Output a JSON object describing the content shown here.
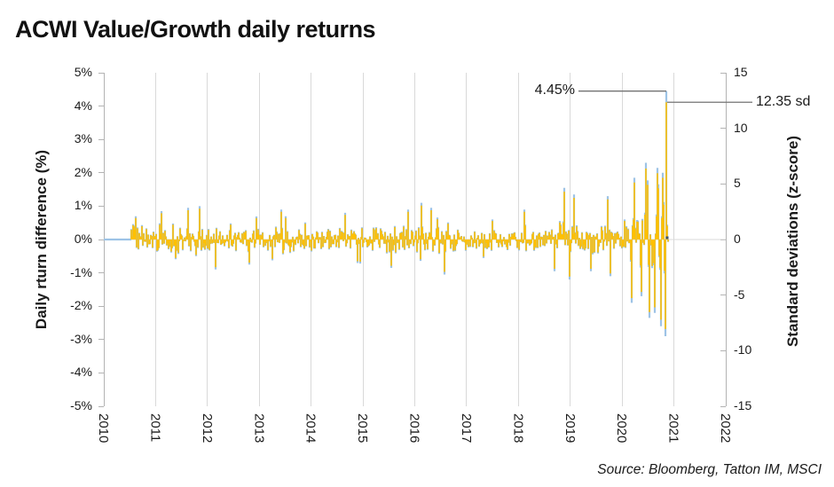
{
  "title": "ACWI Value/Growth daily returns",
  "source_note": "Source: Bloomberg, Tatton IM, MSCI",
  "annotations": {
    "peak_return": "4.45%",
    "peak_zscore": "12.35 sd"
  },
  "left_axis": {
    "title": "Daily rturn difference (%)",
    "tick_labels": [
      "5%",
      "4%",
      "3%",
      "2%",
      "1%",
      "0%",
      "-1%",
      "-2%",
      "-3%",
      "-4%",
      "-5%"
    ],
    "min": -5,
    "max": 5
  },
  "right_axis": {
    "title": "Standard deviations (z-score)",
    "tick_labels": [
      "15",
      "10",
      "5",
      "0",
      "-5",
      "-10",
      "-15"
    ],
    "min": -15,
    "max": 15
  },
  "x_axis": {
    "tick_labels": [
      "2010",
      "2011",
      "2012",
      "2013",
      "2014",
      "2015",
      "2016",
      "2017",
      "2018",
      "2019",
      "2020",
      "2021",
      "2022"
    ],
    "min": 2010,
    "max": 2022
  },
  "palette": {
    "return_series": "#9DC3E6",
    "zscore_series": "#FFC000",
    "gridline": "#d9d9d9",
    "axis_line": "#b3b3b3",
    "callout_line": "#737373",
    "end_marker": "#44546A",
    "text": "#1a1a1a"
  },
  "chart_data": {
    "type": "bar",
    "title": "ACWI Value/Growth daily returns",
    "xlabel": "",
    "ylabel_left": "Daily rturn difference (%)",
    "ylabel_right": "Standard deviations (z-score)",
    "ylim_left": [
      -5,
      5
    ],
    "ylim_right": [
      -15,
      15
    ],
    "xlim": [
      2010,
      2022
    ],
    "grid": "vertical-yearly",
    "legend": "none",
    "series": [
      {
        "name": "Daily return difference (%)",
        "axis": "left",
        "unit": "%"
      },
      {
        "name": "Standard deviations (z-score)",
        "axis": "right",
        "unit": "sd",
        "sd_per_pct": 2.7753
      }
    ],
    "x_start": 2010.53,
    "x_end": 2020.88,
    "flat_zero_segment": {
      "from": 2010.0,
      "to": 2010.53,
      "value": 0
    },
    "peak": {
      "x": 2020.86,
      "pct": 4.45,
      "sd": 12.35
    },
    "trough": {
      "x": 2020.83,
      "pct": -2.9
    },
    "end_marker": {
      "x": 2020.87,
      "pct": 0
    },
    "volatility_envelope_pct": [
      [
        2010.53,
        0.55
      ],
      [
        2010.75,
        0.38
      ],
      [
        2011.1,
        0.42
      ],
      [
        2011.55,
        0.5
      ],
      [
        2011.95,
        0.48
      ],
      [
        2012.4,
        0.4
      ],
      [
        2013.0,
        0.36
      ],
      [
        2013.6,
        0.42
      ],
      [
        2014.3,
        0.35
      ],
      [
        2015.0,
        0.38
      ],
      [
        2015.9,
        0.46
      ],
      [
        2016.25,
        0.5
      ],
      [
        2016.8,
        0.38
      ],
      [
        2017.3,
        0.3
      ],
      [
        2017.9,
        0.34
      ],
      [
        2018.4,
        0.44
      ],
      [
        2018.95,
        0.55
      ],
      [
        2019.4,
        0.5
      ],
      [
        2019.85,
        0.58
      ],
      [
        2020.15,
        0.65
      ],
      [
        2020.35,
        0.95
      ],
      [
        2020.6,
        1.05
      ],
      [
        2020.8,
        1.2
      ],
      [
        2020.89,
        1.25
      ]
    ],
    "spikes_pct": [
      [
        2010.62,
        0.7
      ],
      [
        2011.12,
        0.85
      ],
      [
        2011.62,
        0.95
      ],
      [
        2011.85,
        1.0
      ],
      [
        2012.15,
        -0.9
      ],
      [
        2012.8,
        -0.75
      ],
      [
        2013.42,
        0.9
      ],
      [
        2014.65,
        0.8
      ],
      [
        2015.55,
        -0.85
      ],
      [
        2015.88,
        0.9
      ],
      [
        2016.12,
        1.1
      ],
      [
        2016.32,
        0.95
      ],
      [
        2016.58,
        -1.05
      ],
      [
        2017.5,
        0.6
      ],
      [
        2018.12,
        0.9
      ],
      [
        2018.7,
        -0.95
      ],
      [
        2018.88,
        1.55
      ],
      [
        2018.98,
        -1.2
      ],
      [
        2019.07,
        1.35
      ],
      [
        2019.4,
        -0.95
      ],
      [
        2019.72,
        1.3
      ],
      [
        2019.78,
        -1.1
      ],
      [
        2020.18,
        -1.9
      ],
      [
        2020.24,
        1.85
      ],
      [
        2020.38,
        -1.7
      ],
      [
        2020.46,
        2.3
      ],
      [
        2020.52,
        -2.35
      ],
      [
        2020.63,
        -2.2
      ],
      [
        2020.69,
        2.15
      ],
      [
        2020.75,
        -2.6
      ],
      [
        2020.79,
        2.0
      ],
      [
        2020.83,
        -2.9
      ],
      [
        2020.86,
        4.45
      ]
    ],
    "noise_seed": 987654321
  }
}
